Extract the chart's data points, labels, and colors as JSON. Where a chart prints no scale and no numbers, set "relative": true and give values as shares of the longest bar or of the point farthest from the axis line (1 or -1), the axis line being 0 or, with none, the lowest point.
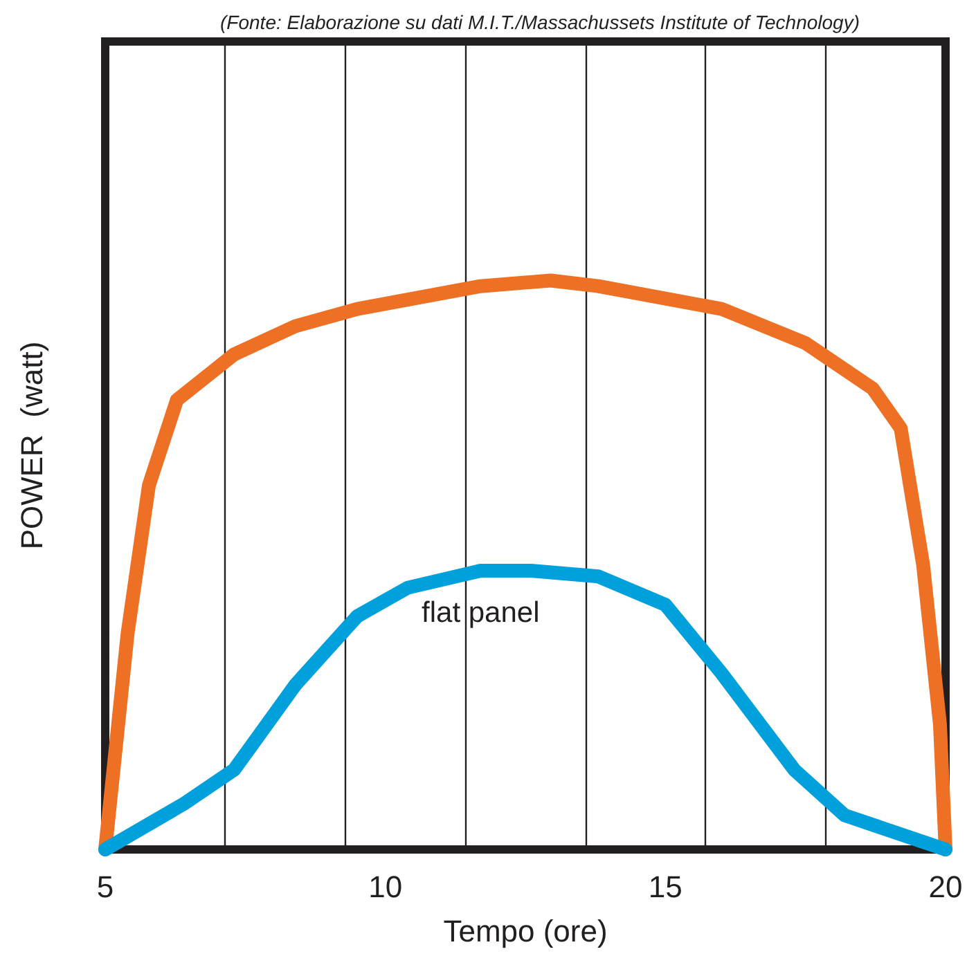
{
  "chart_data": {
    "type": "line",
    "relative": true,
    "xlabel": "Tempo (ore)",
    "ylabel": "POWER  (watt)",
    "annotations": [
      "(Fonte: Elaborazione su dati M.I.T./Massachussets Institute of Technology)"
    ],
    "xlim": [
      5,
      20
    ],
    "xticks": [
      5,
      10,
      15,
      20
    ],
    "ref_lines": [
      {
        "axis": "x",
        "value": 7.14
      },
      {
        "axis": "x",
        "value": 9.29
      },
      {
        "axis": "x",
        "value": 11.43
      },
      {
        "axis": "x",
        "value": 13.57
      },
      {
        "axis": "x",
        "value": 15.71
      },
      {
        "axis": "x",
        "value": 17.86
      }
    ],
    "legend": false,
    "marker": "none",
    "line_style": "solid",
    "series": [
      {
        "color": "#ee7024",
        "x": [
          5,
          5.4,
          5.78,
          6.28,
          7.3,
          8.4,
          9.5,
          11.7,
          12.95,
          13.8,
          16,
          17.5,
          18.7,
          19.2,
          19.6,
          19.9,
          20
        ],
        "values": [
          0,
          0.38,
          0.64,
          0.79,
          0.87,
          0.92,
          0.95,
          0.99,
          1,
          0.99,
          0.95,
          0.89,
          0.81,
          0.74,
          0.5,
          0.22,
          0
        ]
      },
      {
        "name": "flat panel",
        "color": "#00a0dc",
        "x": [
          5,
          6.4,
          7.3,
          8.4,
          9.5,
          10.4,
          11.7,
          12.6,
          13.8,
          15,
          16,
          17.3,
          18.2,
          20
        ],
        "values": [
          0,
          0.08,
          0.14,
          0.29,
          0.41,
          0.46,
          0.49,
          0.49,
          0.48,
          0.43,
          0.31,
          0.14,
          0.06,
          0
        ]
      }
    ]
  }
}
